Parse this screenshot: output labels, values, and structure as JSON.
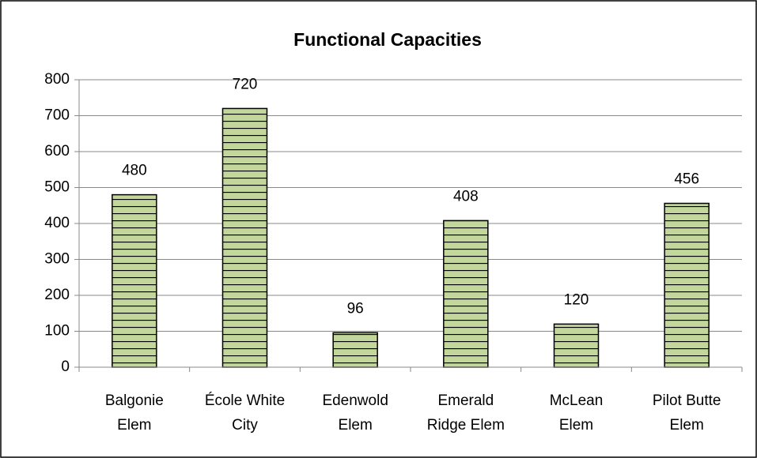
{
  "chart_data": {
    "type": "bar",
    "title": "Functional Capacities",
    "categories": [
      "Balgonie\nElem",
      "École White\nCity",
      "Edenwold\nElem",
      "Emerald\nRidge Elem",
      "McLean\nElem",
      "Pilot Butte\nElem"
    ],
    "values": [
      480,
      720,
      96,
      408,
      120,
      456
    ],
    "color": "#c3d69b",
    "ylim": [
      0,
      800
    ],
    "yticks": [
      0,
      100,
      200,
      300,
      400,
      500,
      600,
      700,
      800
    ],
    "grid": true
  }
}
